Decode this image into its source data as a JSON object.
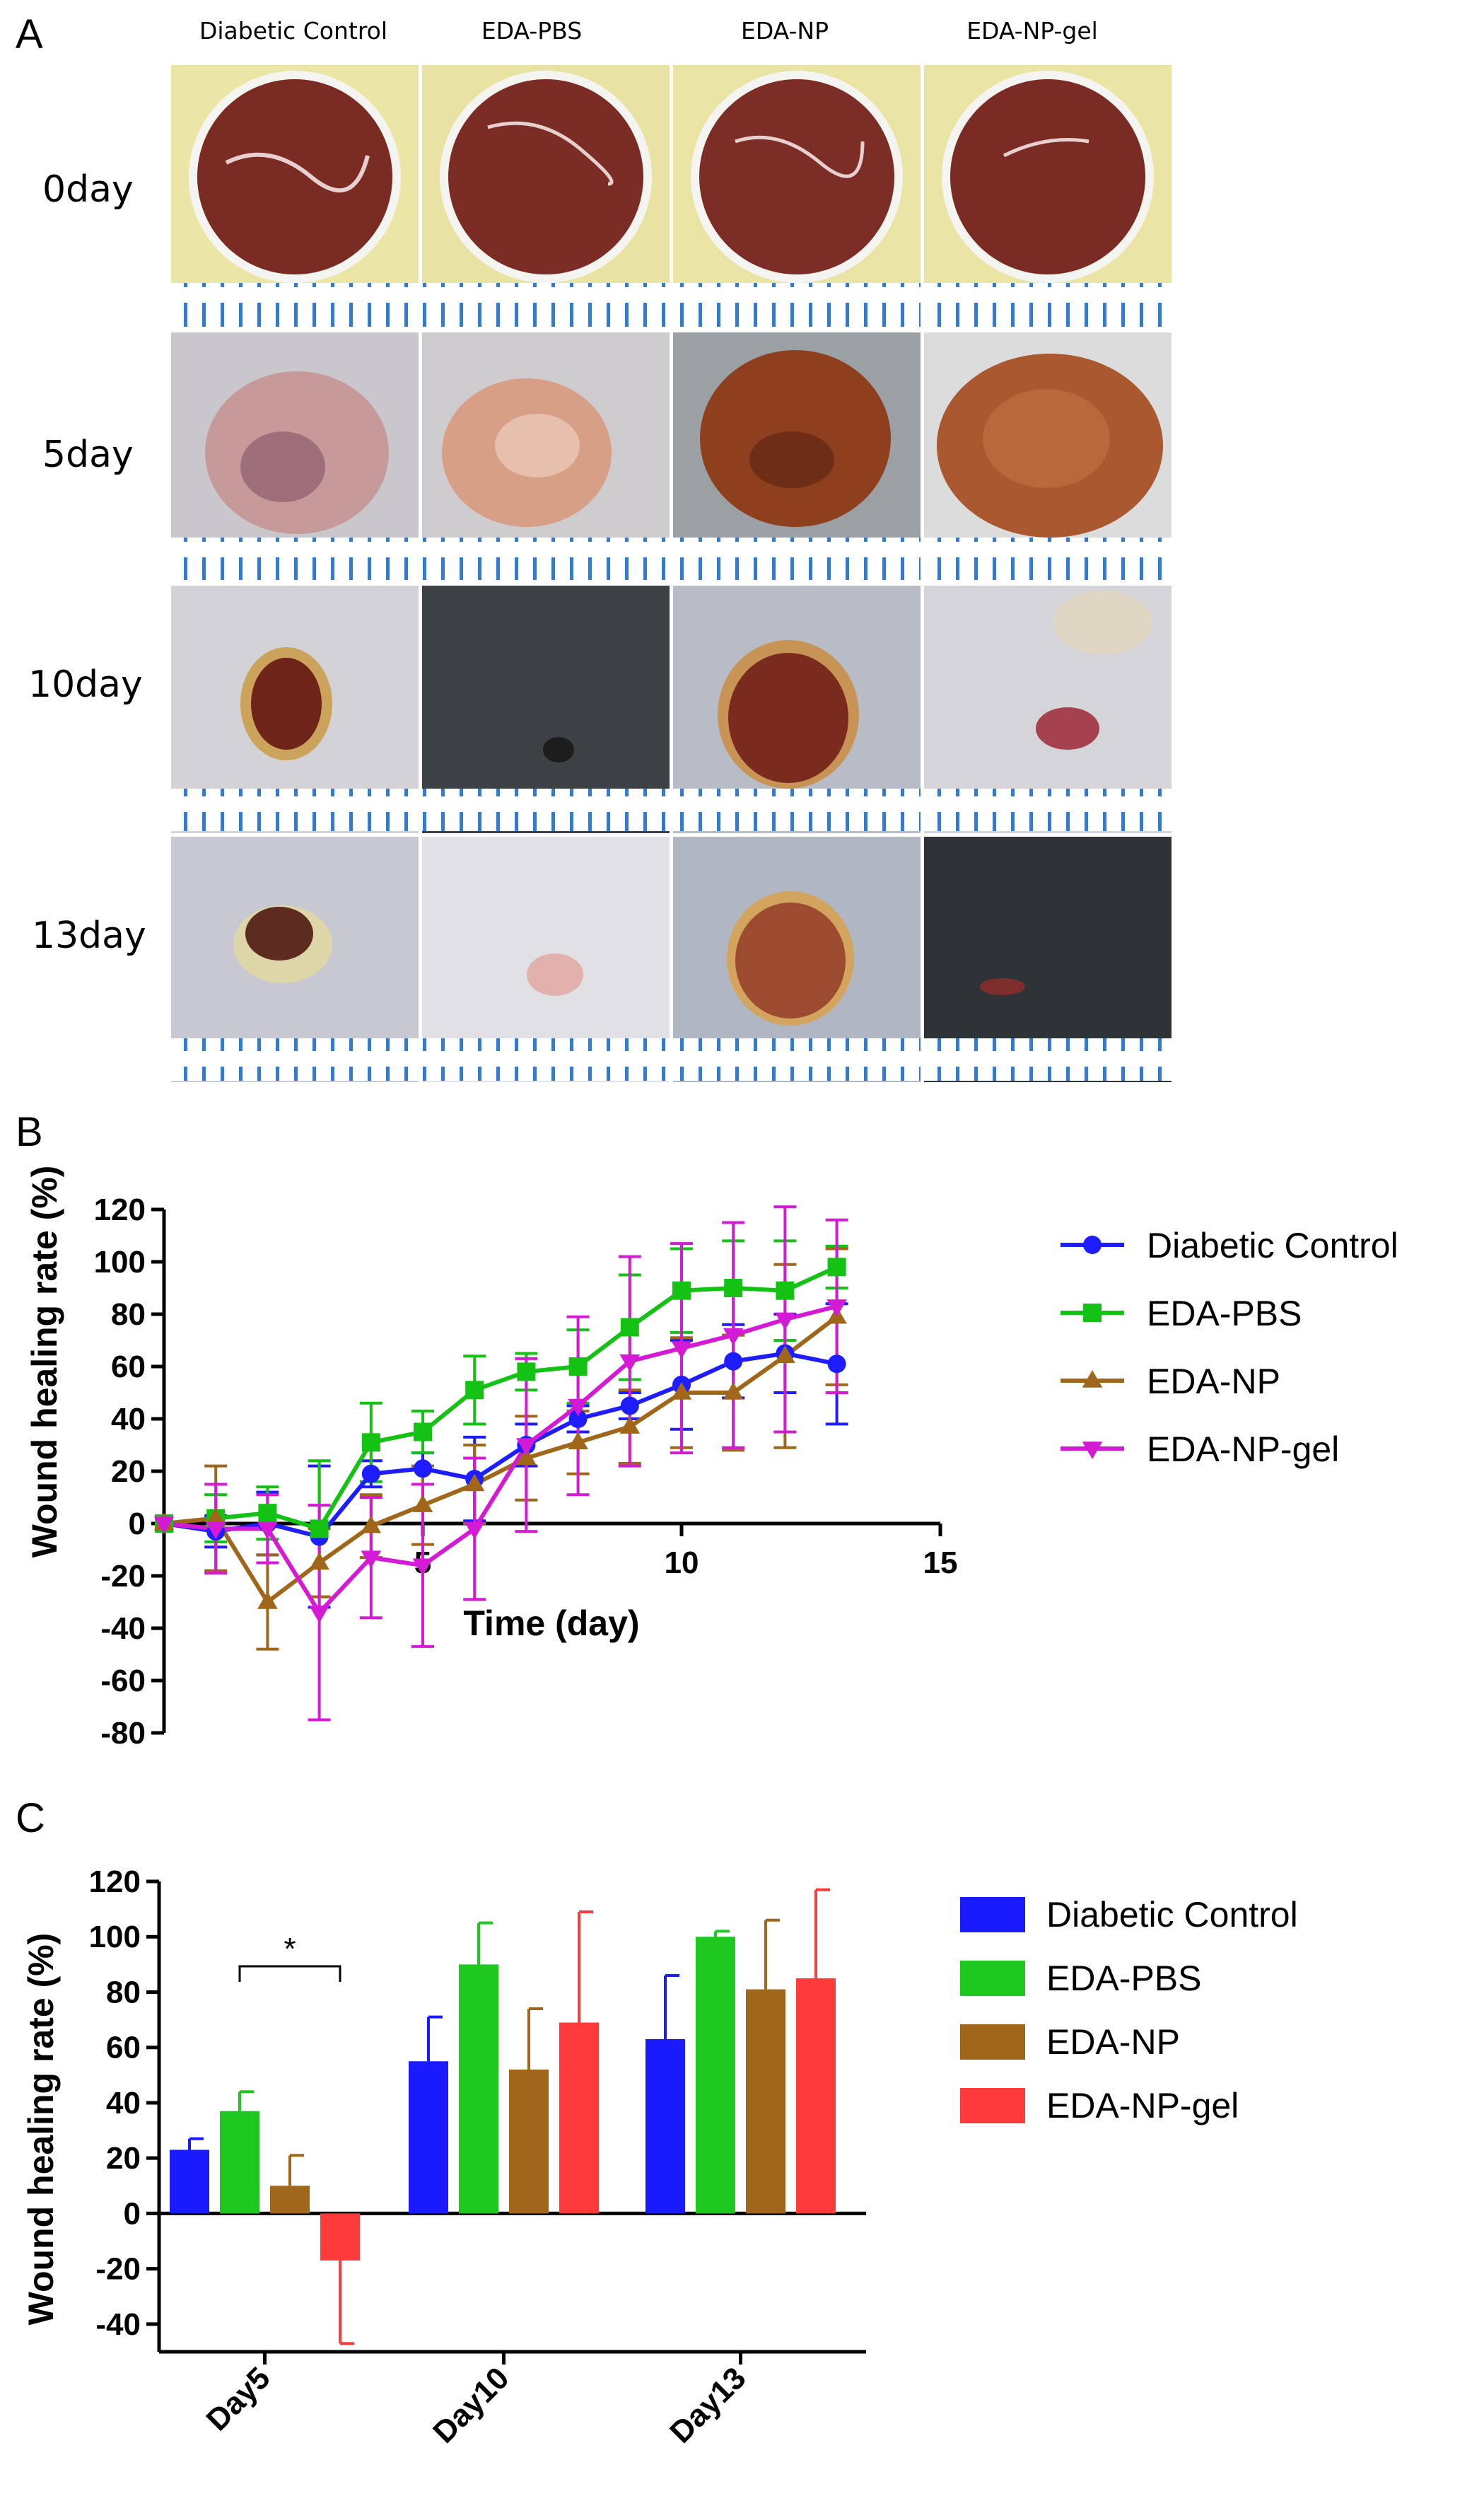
{
  "panel_a": {
    "letter": "A",
    "columns": [
      "Diabetic Control",
      "EDA-PBS",
      "EDA-NP",
      "EDA-NP-gel"
    ],
    "rows": [
      "0day",
      "5day",
      "10day",
      "13day"
    ],
    "colors": {
      "plate_bg": "#ece6a6",
      "wound_fresh": "#7a2b22",
      "skin": "#c9c7cc",
      "skin_dark": "#3c4145",
      "scab": "#8e3f1e",
      "ruler": "#3a78c8"
    }
  },
  "chart_data": [
    {
      "panel": "B",
      "type": "line",
      "title": "",
      "xlabel": "Time (day)",
      "ylabel": "Wound healing rate (%)",
      "xlim": [
        0,
        15
      ],
      "ylim": [
        -80,
        120
      ],
      "xticks": [
        "5",
        "10",
        "15"
      ],
      "yticks": [
        "-80",
        "-60",
        "-40",
        "-20",
        "0",
        "20",
        "40",
        "60",
        "80",
        "100",
        "120"
      ],
      "x": [
        0,
        1,
        2,
        3,
        4,
        5,
        6,
        7,
        8,
        9,
        10,
        11,
        12,
        13
      ],
      "series": [
        {
          "name": "Diabetic Control",
          "color": "#1d1dff",
          "marker": "circle",
          "values": [
            0,
            -3,
            0,
            -5,
            19,
            21,
            17,
            30,
            40,
            45,
            53,
            62,
            65,
            61
          ],
          "errors": [
            0,
            6,
            12,
            27,
            5,
            6,
            16,
            8,
            5,
            5,
            17,
            14,
            15,
            23
          ]
        },
        {
          "name": "EDA-PBS",
          "color": "#13c213",
          "marker": "square",
          "values": [
            0,
            2,
            4,
            -2,
            31,
            35,
            51,
            58,
            60,
            75,
            89,
            90,
            89,
            98
          ],
          "errors": [
            0,
            9,
            10,
            26,
            15,
            8,
            13,
            7,
            14,
            20,
            16,
            18,
            19,
            8
          ]
        },
        {
          "name": "EDA-NP",
          "color": "#a0661a",
          "marker": "triangle-up",
          "values": [
            0,
            2,
            -30,
            -15,
            -1,
            7,
            15,
            25,
            31,
            37,
            50,
            50,
            64,
            79
          ],
          "errors": [
            0,
            20,
            18,
            13,
            12,
            15,
            15,
            16,
            12,
            14,
            21,
            22,
            35,
            26
          ]
        },
        {
          "name": "EDA-NP-gel",
          "color": "#d41ad4",
          "marker": "triangle-down",
          "values": [
            0,
            -2,
            -2,
            -34,
            -13,
            -16,
            -2,
            30,
            45,
            62,
            67,
            72,
            78,
            83
          ],
          "errors": [
            0,
            17,
            13,
            41,
            23,
            31,
            27,
            33,
            34,
            40,
            40,
            43,
            43,
            33
          ]
        }
      ]
    },
    {
      "panel": "C",
      "type": "bar",
      "title": "",
      "xlabel": "",
      "ylabel": "Wound healing rate (%)",
      "ylim": [
        -50,
        120
      ],
      "yticks": [
        "-40",
        "-20",
        "0",
        "20",
        "40",
        "60",
        "80",
        "100",
        "120"
      ],
      "categories": [
        "Day5",
        "Day10",
        "Day13"
      ],
      "series": [
        {
          "name": "Diabetic Control",
          "color": "#1a1aff",
          "values": [
            23,
            55,
            63
          ],
          "errors": [
            4,
            16,
            23
          ]
        },
        {
          "name": "EDA-PBS",
          "color": "#1ec81e",
          "values": [
            37,
            90,
            100
          ],
          "errors": [
            7,
            15,
            2
          ]
        },
        {
          "name": "EDA-NP",
          "color": "#a0661a",
          "values": [
            10,
            52,
            81
          ],
          "errors": [
            11,
            22,
            25
          ]
        },
        {
          "name": "EDA-NP-gel",
          "color": "#ff3a3a",
          "values": [
            -17,
            69,
            85
          ],
          "errors": [
            30,
            40,
            32
          ]
        }
      ],
      "annotation": "*"
    }
  ]
}
